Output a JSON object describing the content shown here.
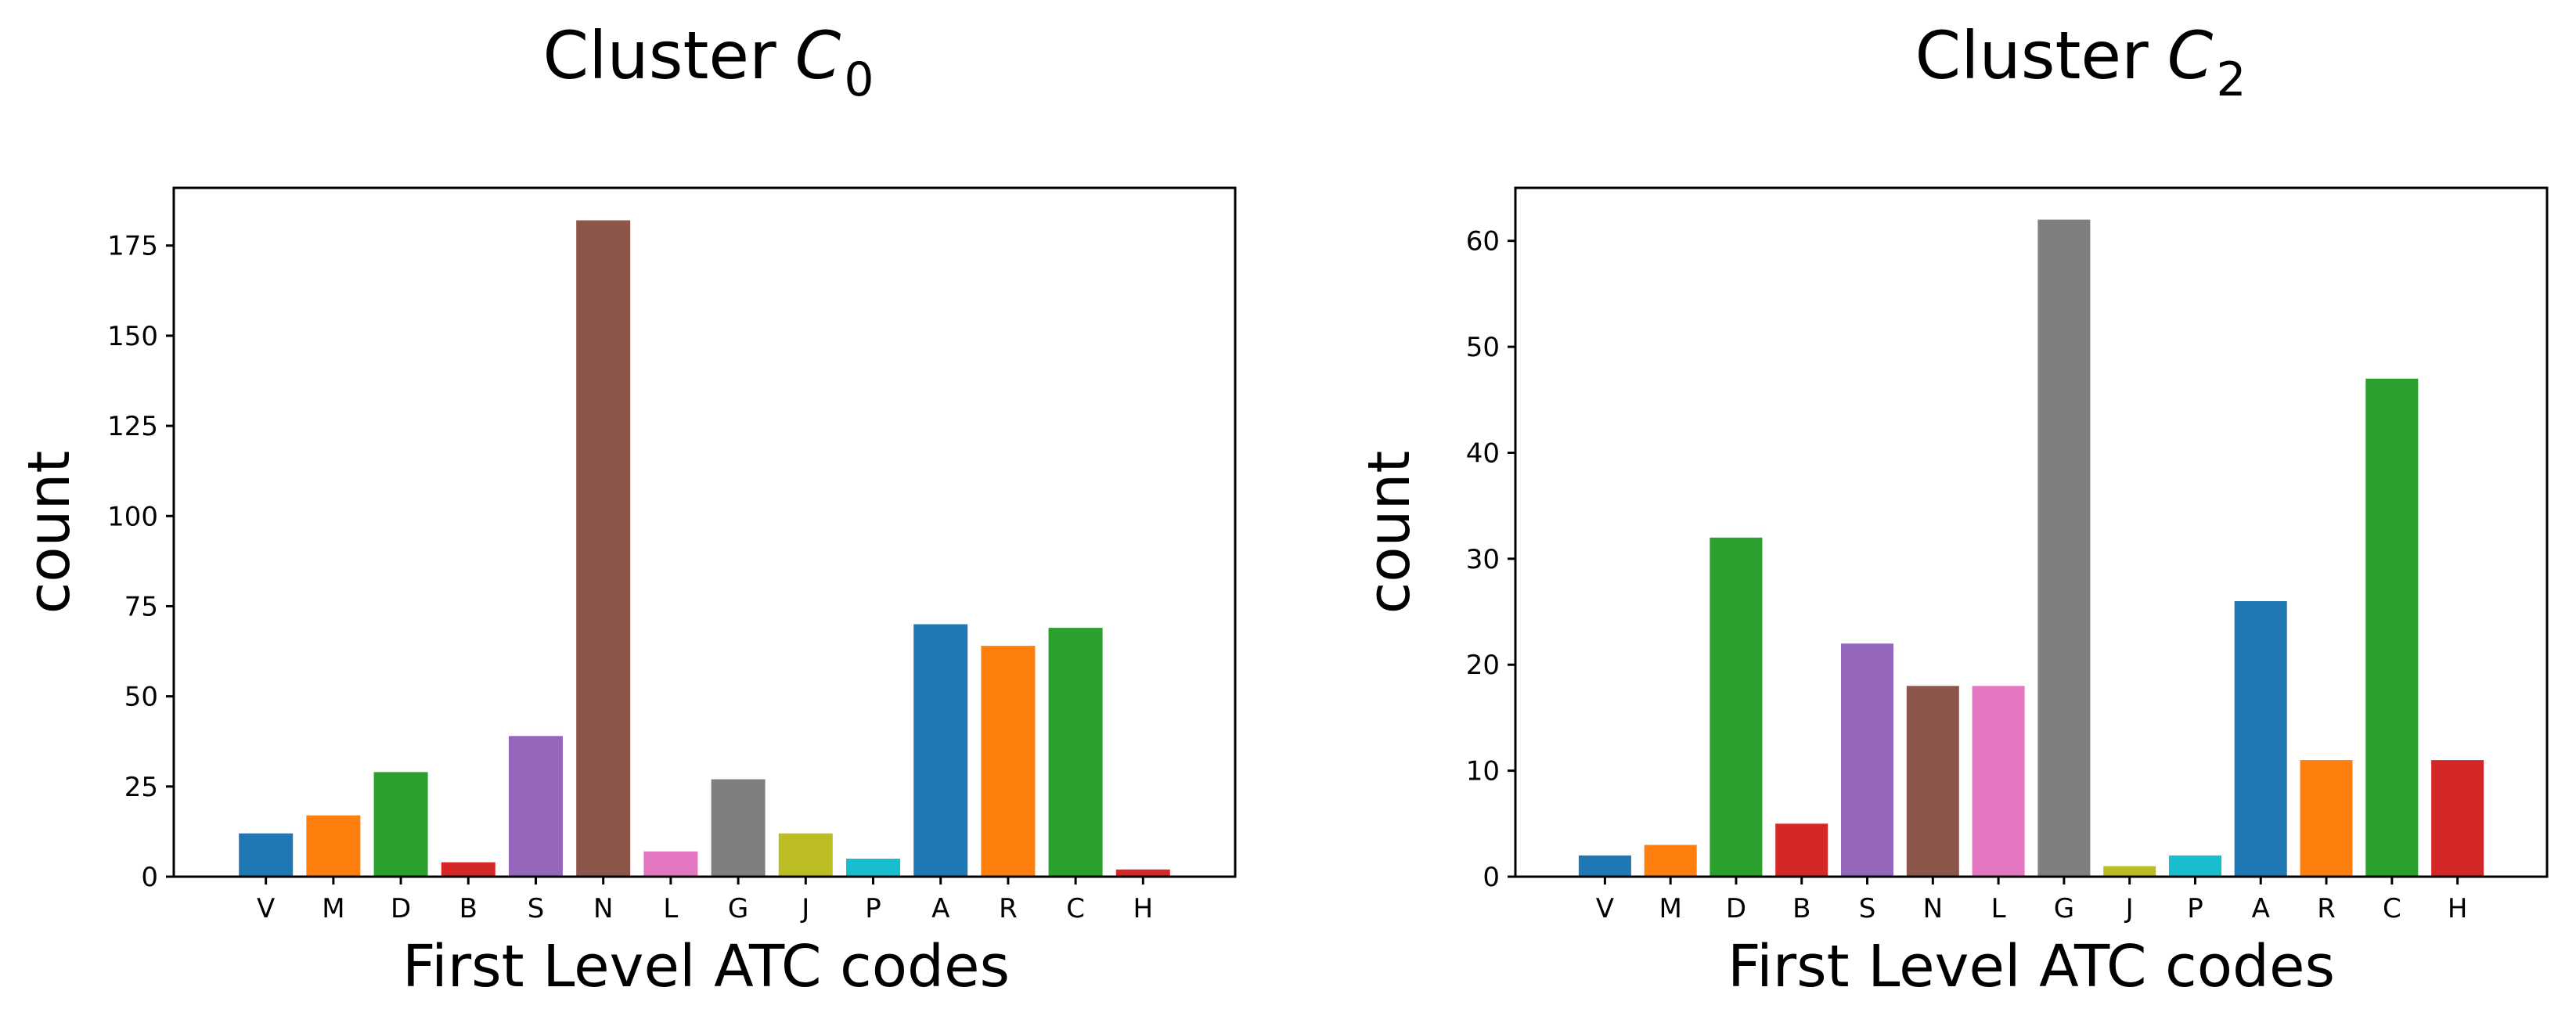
{
  "chart_data": [
    {
      "type": "bar",
      "title": "Cluster C0",
      "title_main": "Cluster",
      "title_symbol": "C",
      "title_subscript": "0",
      "xlabel": "First Level ATC codes",
      "ylabel": "count",
      "categories": [
        "V",
        "M",
        "D",
        "B",
        "S",
        "N",
        "L",
        "G",
        "J",
        "P",
        "A",
        "R",
        "C",
        "H"
      ],
      "values": [
        12,
        17,
        29,
        4,
        39,
        182,
        7,
        27,
        12,
        5,
        70,
        64,
        69,
        2
      ],
      "colors": [
        "#1f77b4",
        "#ff7f0e",
        "#2ca02c",
        "#d62728",
        "#9467bd",
        "#8c564b",
        "#e377c2",
        "#7f7f7f",
        "#bcbd22",
        "#17becf",
        "#1f77b4",
        "#ff7f0e",
        "#2ca02c",
        "#d62728"
      ],
      "ylim": [
        0,
        191
      ],
      "yticks": [
        0,
        25,
        50,
        75,
        100,
        125,
        150,
        175
      ]
    },
    {
      "type": "bar",
      "title": "Cluster C2",
      "title_main": "Cluster",
      "title_symbol": "C",
      "title_subscript": "2",
      "xlabel": "First Level ATC codes",
      "ylabel": "count",
      "categories": [
        "V",
        "M",
        "D",
        "B",
        "S",
        "N",
        "L",
        "G",
        "J",
        "P",
        "A",
        "R",
        "C",
        "H"
      ],
      "values": [
        2,
        3,
        32,
        5,
        22,
        18,
        18,
        62,
        1,
        2,
        26,
        11,
        47,
        11
      ],
      "colors": [
        "#1f77b4",
        "#ff7f0e",
        "#2ca02c",
        "#d62728",
        "#9467bd",
        "#8c564b",
        "#e377c2",
        "#7f7f7f",
        "#bcbd22",
        "#17becf",
        "#1f77b4",
        "#ff7f0e",
        "#2ca02c",
        "#d62728"
      ],
      "ylim": [
        0,
        65
      ],
      "yticks": [
        0,
        10,
        20,
        30,
        40,
        50,
        60
      ]
    }
  ]
}
